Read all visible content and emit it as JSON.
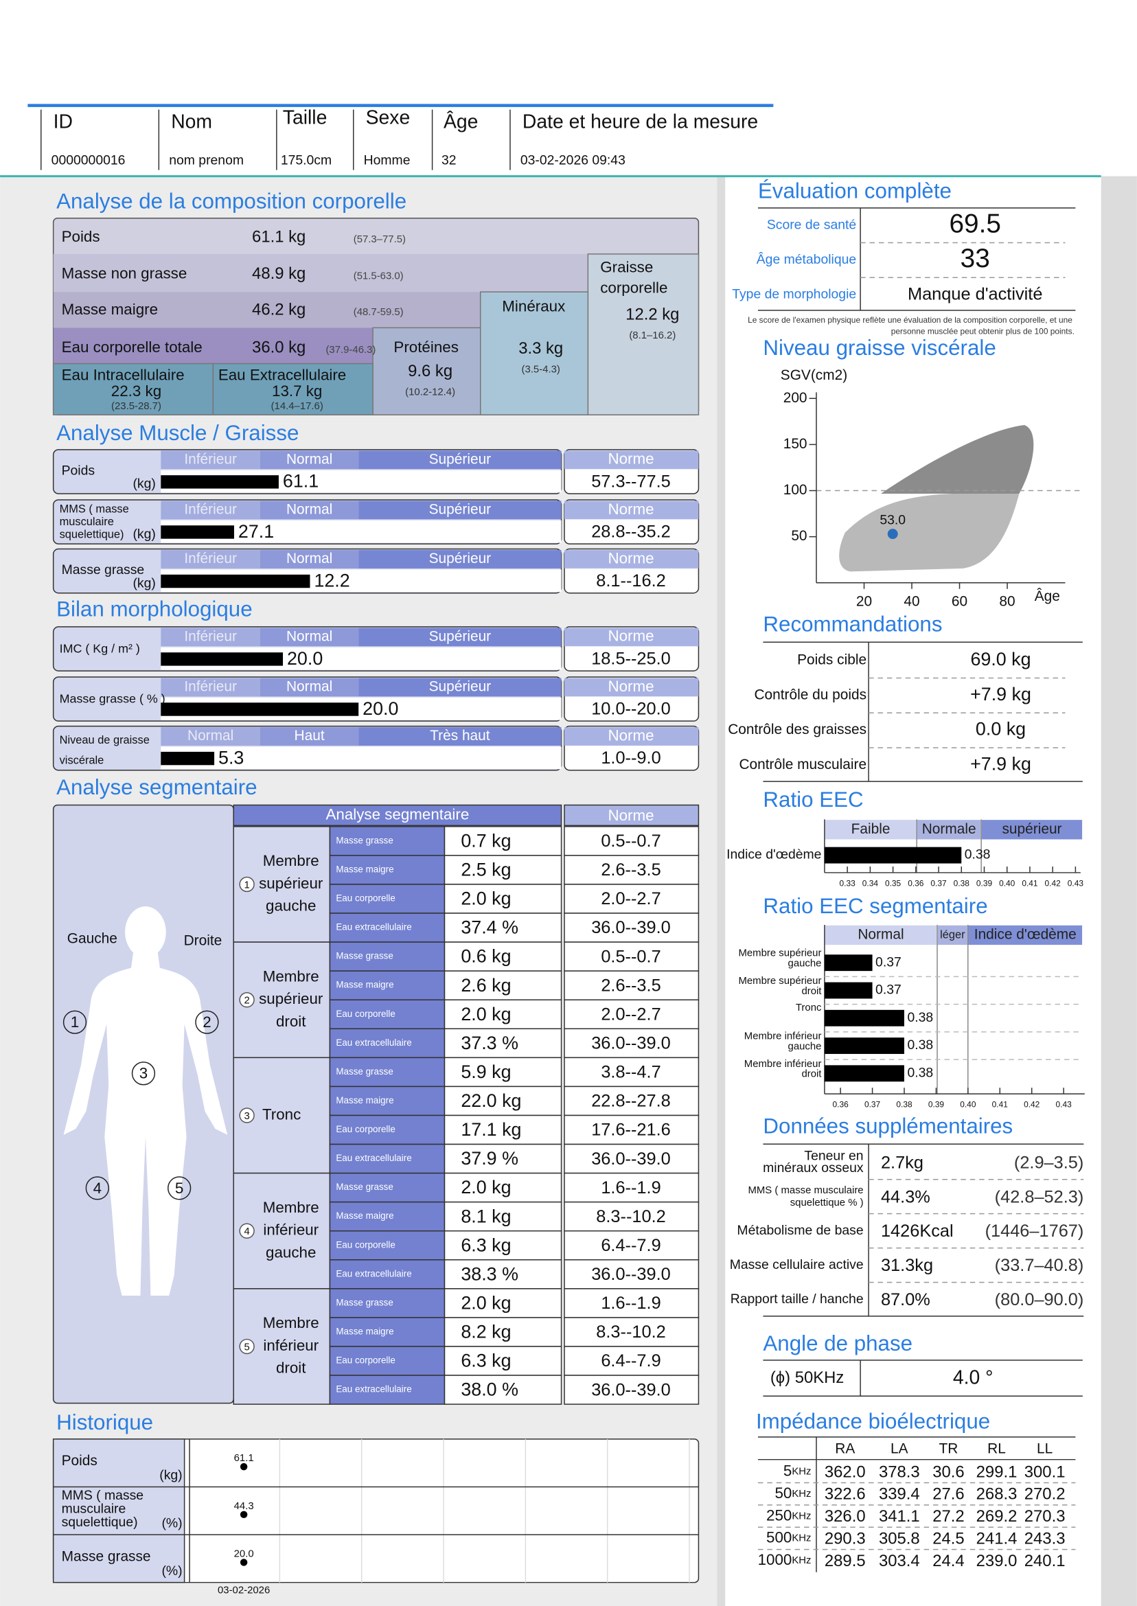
{
  "header": {
    "labels": [
      "ID",
      "Nom",
      "Taille",
      "Sexe",
      "Âge",
      "Date et heure de la mesure"
    ],
    "values": [
      "0000000016",
      "nom prenom",
      "175.0cm",
      "Homme",
      "32",
      "03-02-2026 09:43"
    ]
  },
  "composition": {
    "title": "Analyse de la composition corporelle",
    "weight": {
      "label": "Poids",
      "value": "61.1 kg",
      "range": "(57.3–77.5)"
    },
    "fat_free": {
      "label": "Masse non grasse",
      "value": "48.9 kg",
      "range": "(51.5-63.0)"
    },
    "lean": {
      "label": "Masse maigre",
      "value": "46.2 kg",
      "range": "(48.7-59.5)"
    },
    "water": {
      "label": "Eau corporelle totale",
      "value": "36.0 kg",
      "range": "(37.9-46.3)"
    },
    "icw": {
      "label": "Eau Intracellulaire",
      "value": "22.3 kg",
      "range": "(23.5-28.7)"
    },
    "ecw": {
      "label": "Eau Extracellulaire",
      "value": "13.7 kg",
      "range": "(14.4–17.6)"
    },
    "protein": {
      "label": "Protéines",
      "value": "9.6 kg",
      "range": "(10.2-12.4)"
    },
    "minerals": {
      "label": "Minéraux",
      "value": "3.3 kg",
      "range": "(3.5-4.3)"
    },
    "fat": {
      "label": [
        "Graisse",
        "corporelle"
      ],
      "value": "12.2 kg",
      "range": "(8.1–16.2)"
    }
  },
  "muscle_fat": {
    "title": "Analyse Muscle / Graisse",
    "norm_title": "Norme",
    "rows": [
      {
        "label": [
          "Poids"
        ],
        "unit": "(kg)",
        "scale": [
          "Inférieur",
          {
            "label": "Normal",
            "low": 57.3,
            "high": 77.5
          },
          "Supérieur"
        ],
        "value": 61.1,
        "norm": "57.3--77.5"
      },
      {
        "label": [
          "MMS ( masse",
          "musculaire",
          "squelettique)"
        ],
        "unit": "(kg)",
        "scale": [
          "Inférieur",
          {
            "label": "Normal",
            "low": 28.8,
            "high": 35.2
          },
          "Supérieur"
        ],
        "value": 27.1,
        "norm": "28.8--35.2"
      },
      {
        "label": [
          "Masse grasse"
        ],
        "unit": "(kg)",
        "scale": [
          "Inférieur",
          {
            "label": "Normal",
            "low": 8.1,
            "high": 16.2
          },
          "Supérieur"
        ],
        "value": 12.2,
        "norm": "8.1--16.2"
      }
    ]
  },
  "morphology": {
    "title": "Bilan morphologique",
    "norm_title": "Norme",
    "rows": [
      {
        "label": [
          "IMC ( Kg / m² )"
        ],
        "scale": [
          "Inférieur",
          {
            "label": "Normal",
            "low": 18.5,
            "high": 25.0
          },
          "Supérieur"
        ],
        "value": 20.0,
        "value_label": "20.0",
        "norm": "18.5--25.0"
      },
      {
        "label": [
          "Masse grasse ( % )"
        ],
        "scale": [
          "Inférieur",
          {
            "label": "Normal",
            "low": 10.0,
            "high": 20.0
          },
          "Supérieur"
        ],
        "value": 20.0,
        "value_label": "20.0",
        "norm": "10.0--20.0"
      },
      {
        "label": [
          "Niveau de graisse",
          "viscérale"
        ],
        "scale": [
          {
            "label": "Normal",
            "low": 1.0,
            "high": 9.0
          },
          "Haut",
          "Très haut"
        ],
        "value": 5.3,
        "norm": "1.0--9.0"
      }
    ]
  },
  "segmental": {
    "title": "Analyse segmentaire",
    "table_title": "Analyse segmentaire",
    "norm_title": "Norme",
    "segments": [
      {
        "name": [
          "Membre",
          "supérieur",
          "gauche"
        ],
        "rows": [
          {
            "label": "Masse grasse",
            "value": "0.7 kg",
            "norm": "0.5--0.7"
          },
          {
            "label": "Masse maigre",
            "value": "2.5 kg",
            "norm": "2.6--3.5"
          },
          {
            "label": "Eau corporelle",
            "value": "2.0 kg",
            "norm": "2.0--2.7"
          },
          {
            "label": "Eau extracellulaire",
            "value": "37.4 %",
            "norm": "36.0--39.0"
          }
        ]
      },
      {
        "name": [
          "Membre",
          "supérieur",
          "droit"
        ],
        "rows": [
          {
            "label": "Masse grasse",
            "value": "0.6 kg",
            "norm": "0.5--0.7"
          },
          {
            "label": "Masse maigre",
            "value": "2.6 kg",
            "norm": "2.6--3.5"
          },
          {
            "label": "Eau corporelle",
            "value": "2.0 kg",
            "norm": "2.0--2.7"
          },
          {
            "label": "Eau extracellulaire",
            "value": "37.3 %",
            "norm": "36.0--39.0"
          }
        ]
      },
      {
        "name": [
          "Tronc"
        ],
        "rows": [
          {
            "label": "Masse grasse",
            "value": "5.9 kg",
            "norm": "3.8--4.7"
          },
          {
            "label": "Masse maigre",
            "value": "22.0 kg",
            "norm": "22.8--27.8"
          },
          {
            "label": "Eau corporelle",
            "value": "17.1 kg",
            "norm": "17.6--21.6"
          },
          {
            "label": "Eau extracellulaire",
            "value": "37.9 %",
            "norm": "36.0--39.0"
          }
        ]
      },
      {
        "name": [
          "Membre",
          "inférieur",
          "gauche"
        ],
        "rows": [
          {
            "label": "Masse grasse",
            "value": "2.0 kg",
            "norm": "1.6--1.9"
          },
          {
            "label": "Masse maigre",
            "value": "8.1 kg",
            "norm": "8.3--10.2"
          },
          {
            "label": "Eau corporelle",
            "value": "6.3 kg",
            "norm": "6.4--7.9"
          },
          {
            "label": "Eau extracellulaire",
            "value": "38.3 %",
            "norm": "36.0--39.0"
          }
        ]
      },
      {
        "name": [
          "Membre",
          "inférieur",
          "droit"
        ],
        "rows": [
          {
            "label": "Masse grasse",
            "value": "2.0 kg",
            "norm": "1.6--1.9"
          },
          {
            "label": "Masse maigre",
            "value": "8.2 kg",
            "norm": "8.3--10.2"
          },
          {
            "label": "Eau corporelle",
            "value": "6.3 kg",
            "norm": "6.4--7.9"
          },
          {
            "label": "Eau extracellulaire",
            "value": "38.0 %",
            "norm": "36.0--39.0"
          }
        ]
      }
    ]
  },
  "figure": {
    "left": "Gauche",
    "right": "Droite",
    "markers": [
      "1",
      "2",
      "3",
      "4",
      "5"
    ]
  },
  "history": {
    "title": "Historique",
    "rows": [
      {
        "label": [
          "Poids"
        ],
        "unit": "(kg)",
        "value": "61.1"
      },
      {
        "label": [
          "MMS ( masse",
          "musculaire",
          "squelettique)"
        ],
        "unit": "(%)",
        "value": "44.3"
      },
      {
        "label": [
          "Masse grasse"
        ],
        "unit": "(%)",
        "value": "20.0"
      }
    ],
    "dates": [
      "03-02-2026"
    ]
  },
  "evaluation": {
    "title": "Évaluation complète",
    "rows": [
      {
        "label": "Score de santé",
        "value": "69.5"
      },
      {
        "label": "Âge métabolique",
        "value": "33"
      },
      {
        "label": "Type de morphologie",
        "value": "Manque d'activité"
      }
    ],
    "note": [
      "Le score de l'examen physique reflète une évaluation de la composition corporelle, et une",
      "personne musclée peut obtenir plus de 100 points."
    ]
  },
  "visceral": {
    "title": "Niveau graisse viscérale",
    "chart": {
      "type": "scatter",
      "y_label": "SGV(cm2)",
      "x_label": "Âge",
      "x": [
        32
      ],
      "values": [
        53.0
      ],
      "value_labels": [
        "53.0"
      ],
      "color": "#2a6ebb",
      "xlim": [
        0,
        100
      ],
      "xticks": [
        20,
        40,
        60,
        80
      ],
      "ylim": [
        0,
        210
      ],
      "yticks": [
        50,
        100,
        150,
        200
      ],
      "reference_line": 100
    }
  },
  "recommendations": {
    "title": "Recommandations",
    "rows": [
      {
        "label": "Poids cible",
        "value": "69.0 kg"
      },
      {
        "label": "Contrôle du poids",
        "value": "+7.9 kg"
      },
      {
        "label": "Contrôle des graisses",
        "value": "0.0 kg"
      },
      {
        "label": "Contrôle musculaire",
        "value": "+7.9 kg"
      }
    ]
  },
  "ecw_ratio": {
    "title": "Ratio EEC",
    "chart": {
      "type": "bar",
      "scale": [
        "Faible",
        "Normale",
        "supérieur"
      ],
      "categories": [
        "Indice d'œdème"
      ],
      "values": [
        0.38
      ],
      "color": "#000000",
      "xlim": [
        0.32,
        0.43
      ],
      "xticks": [
        0.33,
        0.34,
        0.35,
        0.36,
        0.37,
        0.38,
        0.39,
        {
          "value": 0.4,
          "label": "0.40"
        },
        0.41,
        0.42,
        0.43
      ]
    }
  },
  "ecw_segmental": {
    "title": "Ratio EEC segmentaire",
    "chart": {
      "type": "bar",
      "scale": [
        "Normal",
        "léger",
        "Indice d'œdème"
      ],
      "categories": [
        [
          "Membre supérieur",
          "gauche"
        ],
        [
          "Membre supérieur",
          "droit"
        ],
        [
          "Tronc"
        ],
        [
          "Membre inférieur",
          "gauche"
        ],
        [
          "Membre inférieur",
          "droit"
        ]
      ],
      "values": [
        0.37,
        0.37,
        0.38,
        0.38,
        0.38
      ],
      "color": "#000000",
      "xlim": [
        0.355,
        0.435
      ],
      "xticks": [
        0.36,
        0.37,
        0.38,
        0.39,
        {
          "value": 0.4,
          "label": "0.40"
        },
        0.41,
        0.42,
        0.43
      ]
    }
  },
  "extra": {
    "title": "Données supplémentaires",
    "rows": [
      {
        "label": [
          "Teneur en",
          "minéraux osseux"
        ],
        "value": "2.7kg",
        "range": "(2.9–3.5)"
      },
      {
        "label": [
          "MMS ( masse musculaire",
          "squelettique % )"
        ],
        "value": "44.3%",
        "range": "(42.8–52.3)"
      },
      {
        "label": [
          "Métabolisme de base"
        ],
        "value": "1426Kcal",
        "range": "(1446–1767)"
      },
      {
        "label": [
          "Masse cellulaire active"
        ],
        "value": "31.3kg",
        "range": "(33.7–40.8)"
      },
      {
        "label": [
          "Rapport taille / hanche"
        ],
        "value": "87.0%",
        "range": "(80.0–90.0)"
      }
    ]
  },
  "phase": {
    "title": "Angle de phase",
    "label": "(ϕ) 50KHz",
    "value": "4.0 °"
  },
  "impedance": {
    "title": "Impédance bioélectrique",
    "columns": [
      "RA",
      "LA",
      "TR",
      "RL",
      "LL"
    ],
    "rows": [
      {
        "freq": "5",
        "unit": "KHz",
        "values": [
          "362.0",
          "378.3",
          "30.6",
          "299.1",
          "300.1"
        ]
      },
      {
        "freq": "50",
        "unit": "KHz",
        "values": [
          "322.6",
          "339.4",
          "27.6",
          "268.3",
          "270.2"
        ]
      },
      {
        "freq": "250",
        "unit": "KHz",
        "values": [
          "326.0",
          "341.1",
          "27.2",
          "269.2",
          "270.3"
        ]
      },
      {
        "freq": "500",
        "unit": "KHz",
        "values": [
          "290.3",
          "305.8",
          "24.5",
          "241.4",
          "243.3"
        ]
      },
      {
        "freq": "1000",
        "unit": "KHz",
        "values": [
          "289.5",
          "303.4",
          "24.4",
          "239.0",
          "240.1"
        ]
      }
    ]
  }
}
